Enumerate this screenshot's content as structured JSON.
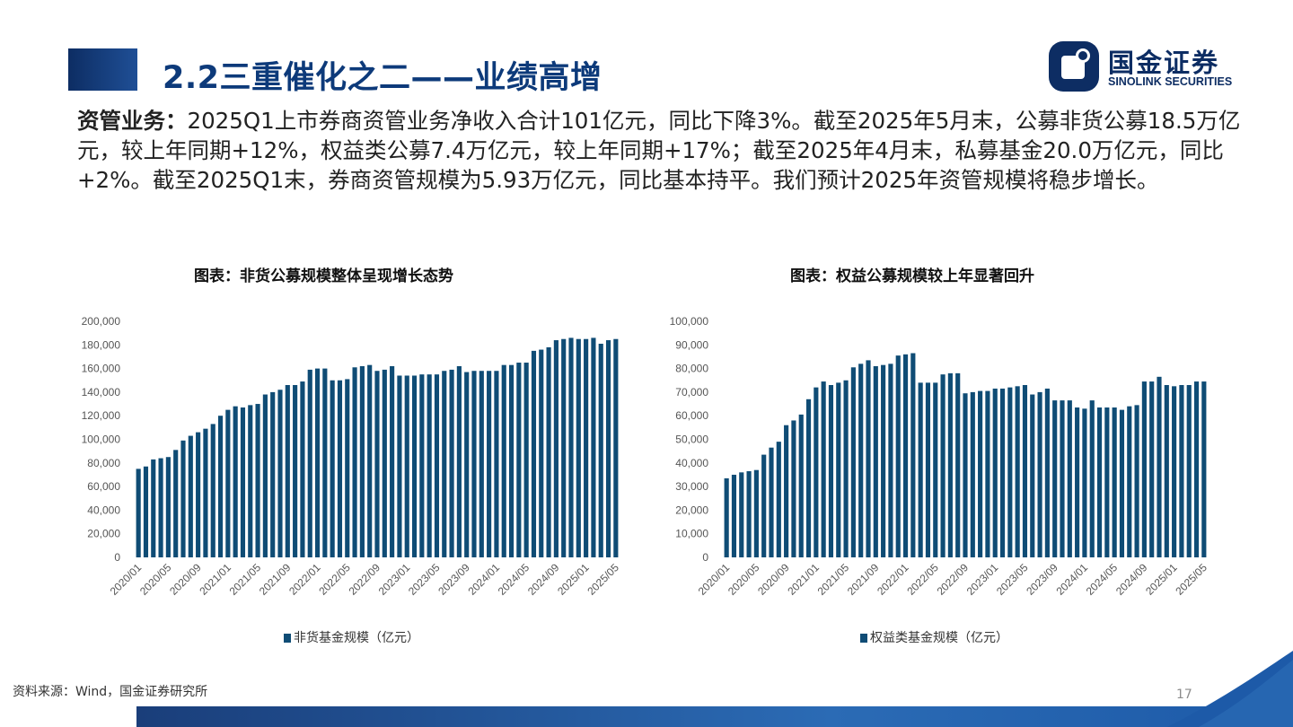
{
  "slide": {
    "title": "2.2三重催化之二——业绩高增",
    "logo_cn": "国金证券",
    "logo_en": "SINOLINK SECURITIES",
    "body_lead": "资管业务：",
    "body_text": "2025Q1上市券商资管业务净收入合计101亿元，同比下降3%。截至2025年5月末，公募非货公募18.5万亿元，较上年同期+12%，权益类公募7.4万亿元，较上年同期+17%；截至2025年4月末，私募基金20.0万亿元，同比+2%。截至2025Q1末，券商资管规模为5.93万亿元，同比基本持平。我们预计2025年资管规模将稳步增长。",
    "source": "资料来源：Wind，国金证券研究所",
    "page_number": "17",
    "colors": {
      "bar": "#0f4c75",
      "title": "#0d3a7a",
      "brand": "#0d2d63"
    }
  },
  "chart_data": [
    {
      "type": "bar",
      "title": "图表：非货公募规模整体呈现增长态势",
      "legend": "非货基金规模（亿元）",
      "legend_placement": "bottom",
      "grid": false,
      "ylim": [
        0,
        200000
      ],
      "yticks": [
        "200,000",
        "180,000",
        "160,000",
        "140,000",
        "120,000",
        "100,000",
        "80,000",
        "60,000",
        "40,000",
        "20,000",
        "0"
      ],
      "xtick_labels": [
        "2020/01",
        "2020/05",
        "2020/09",
        "2021/01",
        "2021/05",
        "2021/09",
        "2022/01",
        "2022/05",
        "2022/09",
        "2023/01",
        "2023/05",
        "2023/09",
        "2024/01",
        "2024/05",
        "2024/09",
        "2025/01",
        "2025/05"
      ],
      "series": [
        {
          "values": [
            75000,
            77000,
            83000,
            84000,
            85000,
            91000,
            99000,
            103000,
            106000,
            109000,
            113000,
            120000,
            125000,
            128000,
            127000,
            129000,
            130000,
            138000,
            140000,
            142000,
            146000,
            146000,
            149000,
            159000,
            160000,
            160000,
            150000,
            150000,
            151000,
            161000,
            162000,
            163000,
            158000,
            159000,
            162000,
            154000,
            154000,
            154000,
            155000,
            155000,
            155000,
            158000,
            159000,
            162000,
            157000,
            158000,
            158000,
            158000,
            158000,
            163000,
            163000,
            165000,
            165000,
            175000,
            176000,
            178000,
            184000,
            185000,
            186000,
            185000,
            185000,
            186000,
            181000,
            184000,
            185000
          ]
        }
      ]
    },
    {
      "type": "bar",
      "title": "图表：权益公募规模较上年显著回升",
      "legend": "权益类基金规模（亿元）",
      "legend_placement": "bottom",
      "grid": false,
      "ylim": [
        0,
        100000
      ],
      "yticks": [
        "100,000",
        "90,000",
        "80,000",
        "70,000",
        "60,000",
        "50,000",
        "40,000",
        "30,000",
        "20,000",
        "10,000",
        "0"
      ],
      "xtick_labels": [
        "2020/01",
        "2020/05",
        "2020/09",
        "2021/01",
        "2021/05",
        "2021/09",
        "2022/01",
        "2022/05",
        "2022/09",
        "2023/01",
        "2023/05",
        "2023/09",
        "2024/01",
        "2024/05",
        "2024/09",
        "2025/01",
        "2025/05"
      ],
      "series": [
        {
          "values": [
            33500,
            35000,
            36000,
            36500,
            37000,
            43500,
            46500,
            49000,
            56000,
            58000,
            60500,
            67000,
            72000,
            74500,
            73000,
            74000,
            75000,
            80500,
            82000,
            83500,
            81000,
            81500,
            82000,
            85500,
            86000,
            86500,
            74000,
            74000,
            74000,
            77500,
            78000,
            78000,
            69500,
            70000,
            70500,
            70500,
            71500,
            71500,
            72000,
            72500,
            73000,
            69000,
            70000,
            71500,
            66500,
            66500,
            66500,
            63500,
            63000,
            66500,
            63500,
            63500,
            63500,
            62500,
            64000,
            64500,
            74500,
            74500,
            76500,
            73000,
            72500,
            73000,
            73000,
            74500,
            74500
          ]
        }
      ]
    }
  ]
}
